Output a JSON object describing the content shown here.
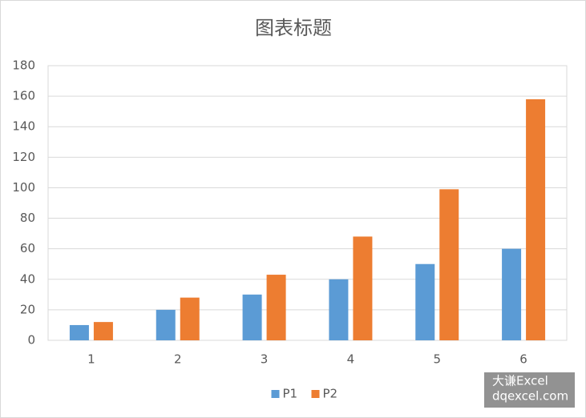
{
  "chart_data": {
    "type": "bar",
    "title": "图表标题",
    "categories": [
      "1",
      "2",
      "3",
      "4",
      "5",
      "6"
    ],
    "series": [
      {
        "name": "P1",
        "color": "#5b9bd5",
        "values": [
          10,
          20,
          30,
          40,
          50,
          60
        ]
      },
      {
        "name": "P2",
        "color": "#ed7d31",
        "values": [
          12,
          28,
          43,
          68,
          99,
          158
        ]
      }
    ],
    "ylim": [
      0,
      180
    ],
    "yticks": [
      0,
      20,
      40,
      60,
      80,
      100,
      120,
      140,
      160,
      180
    ],
    "grid": true,
    "legend": "bottom",
    "watermark": [
      "大谦Excel",
      "dqexcel.com"
    ]
  }
}
